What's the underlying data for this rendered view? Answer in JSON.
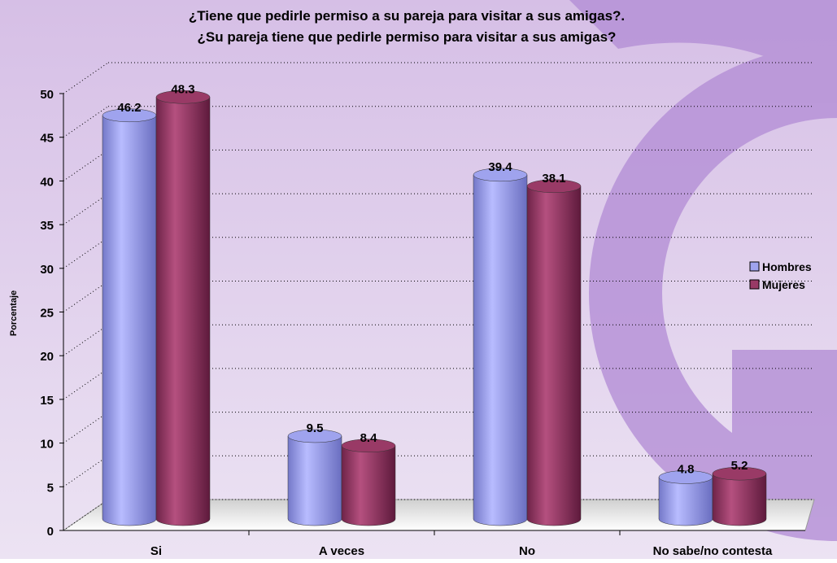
{
  "chart_data": {
    "type": "bar",
    "title": "¿Tiene que pedirle permiso a su pareja para visitar a sus amigas?.",
    "subtitle": "¿Su pareja tiene que pedirle permiso para visitar a sus amigas?",
    "y_label": "Porcentaje",
    "categories": [
      "Si",
      "A veces",
      "No",
      "No sabe/no contesta"
    ],
    "series": [
      {
        "name": "Hombres",
        "color": "#9fa3ee",
        "values": [
          46.2,
          9.5,
          39.4,
          4.8
        ]
      },
      {
        "name": "Mujeres",
        "color": "#993a66",
        "values": [
          48.3,
          8.4,
          38.1,
          5.2
        ]
      }
    ],
    "ylim": [
      0,
      50
    ],
    "yticks": [
      0,
      5,
      10,
      15,
      20,
      25,
      30,
      35,
      40,
      45,
      50
    ],
    "grid": true,
    "legend": "right"
  }
}
